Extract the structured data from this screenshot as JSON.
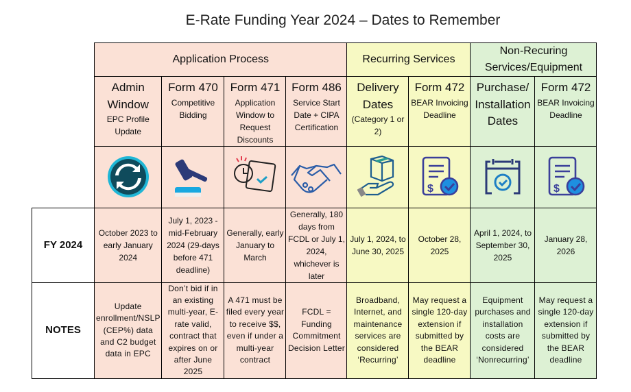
{
  "title": "E-Rate Funding Year 2024 – Dates to Remember",
  "groups": {
    "application": "Application Process",
    "recurring": "Recurring Services",
    "nonrecurring": "Non-Recuring Services/Equipment"
  },
  "columns": [
    {
      "main": "Admin Window",
      "sub": "EPC Profile Update",
      "icon": "refresh-icon"
    },
    {
      "main": "Form 470",
      "sub": "Competitive Bidding",
      "icon": "gavel-icon"
    },
    {
      "main": "Form 471",
      "sub": "Application Window to Request Discounts",
      "icon": "calendar-clock-icon"
    },
    {
      "main": "Form 486",
      "sub": "Service Start Date + CIPA Certification",
      "icon": "handshake-icon"
    },
    {
      "main": "Delivery Dates",
      "sub": "(Category 1 or 2)",
      "icon": "package-hand-icon"
    },
    {
      "main": "Form 472",
      "sub": "BEAR Invoicing Deadline",
      "icon": "invoice-check-icon"
    },
    {
      "main": "Purchase/ Installation Dates",
      "sub": "",
      "icon": "calendar-check-icon"
    },
    {
      "main": "Form 472",
      "sub": "BEAR Invoicing Deadline",
      "icon": "invoice-check-icon"
    }
  ],
  "rows": [
    {
      "label": "FY 2024",
      "cells": [
        "October 2023 to early January 2024",
        "July 1, 2023 - mid-February 2024 (29-days before 471 deadline)",
        "Generally, early January to March",
        "Generally, 180 days from FCDL or July 1, 2024, whichever is later",
        "July 1, 2024, to June 30, 2025",
        "October 28, 2025",
        "April 1, 2024, to September 30, 2025",
        "January 28, 2026"
      ]
    },
    {
      "label": "NOTES",
      "cells": [
        "Update enrollment/NSLP (CEP%) data and C2 budget data in EPC",
        "Don’t bid if in an existing multi-year, E-rate valid, contract that expires on or after June 2025",
        "A 471 must be filed every year to receive $$, even if under a multi-year contract",
        "FCDL = Funding Commitment Decision Letter",
        "Broadband, Internet, and maintenance services are considered ‘Recurring’",
        "May request a single 120-day extension if submitted by the BEAR deadline",
        "Equipment purchases and installation costs are considered ‘Nonrecurring’",
        "May request a single 120-day extension if submitted by the BEAR deadline"
      ]
    }
  ],
  "colors": {
    "application": "#fbe1d6",
    "recurring": "#f7f9c3",
    "nonrecurring": "#ddf1d4",
    "icon_navy": "#2b3a78",
    "icon_blue": "#1e7fc4"
  }
}
